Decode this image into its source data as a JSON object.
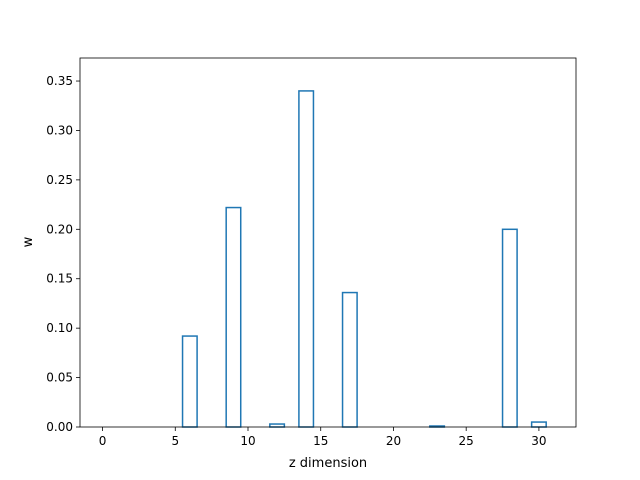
{
  "chart_data": {
    "type": "bar",
    "style": "step-outline",
    "color": "#1f77b4",
    "xlabel": "z dimension",
    "ylabel": "w",
    "xlim": [
      -1.55,
      32.55
    ],
    "ylim": [
      0,
      0.3733
    ],
    "xticks": [
      0,
      5,
      10,
      15,
      20,
      25,
      30
    ],
    "xtick_labels": [
      "0",
      "5",
      "10",
      "15",
      "20",
      "25",
      "30"
    ],
    "yticks": [
      0.0,
      0.05,
      0.1,
      0.15,
      0.2,
      0.25,
      0.3,
      0.35
    ],
    "ytick_labels": [
      "0.00",
      "0.05",
      "0.10",
      "0.15",
      "0.20",
      "0.25",
      "0.30",
      "0.35"
    ],
    "grid": false,
    "categories": [
      0,
      1,
      2,
      3,
      4,
      5,
      6,
      7,
      8,
      9,
      10,
      11,
      12,
      13,
      14,
      15,
      16,
      17,
      18,
      19,
      20,
      21,
      22,
      23,
      24,
      25,
      26,
      27,
      28,
      29,
      30,
      31
    ],
    "values": [
      0,
      0,
      0,
      0,
      0,
      0,
      0.092,
      0,
      0,
      0.222,
      0,
      0,
      0.003,
      0,
      0.34,
      0,
      0,
      0.136,
      0,
      0,
      0,
      0,
      0,
      0.001,
      0,
      0,
      0,
      0,
      0.2,
      0,
      0.005,
      0
    ]
  }
}
